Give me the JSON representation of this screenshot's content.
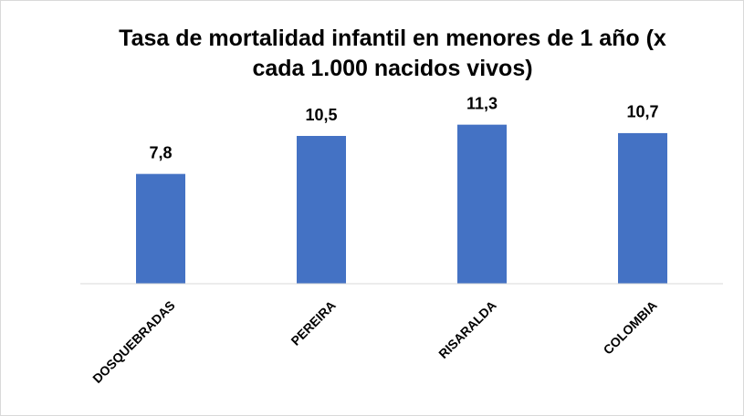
{
  "chart_data": {
    "type": "bar",
    "title": "Tasa de mortalidad infantil en menores de 1 año (x cada 1.000 nacidos vivos)",
    "categories": [
      "DOSQUEBRADAS",
      "PEREIRA",
      "RISARALDA",
      "COLOMBIA"
    ],
    "values": [
      7.8,
      10.5,
      11.3,
      10.7
    ],
    "value_labels": [
      "7,8",
      "10,5",
      "11,3",
      "10,7"
    ],
    "color": "#4472c4",
    "ylim": [
      0,
      14
    ],
    "grid": false
  }
}
